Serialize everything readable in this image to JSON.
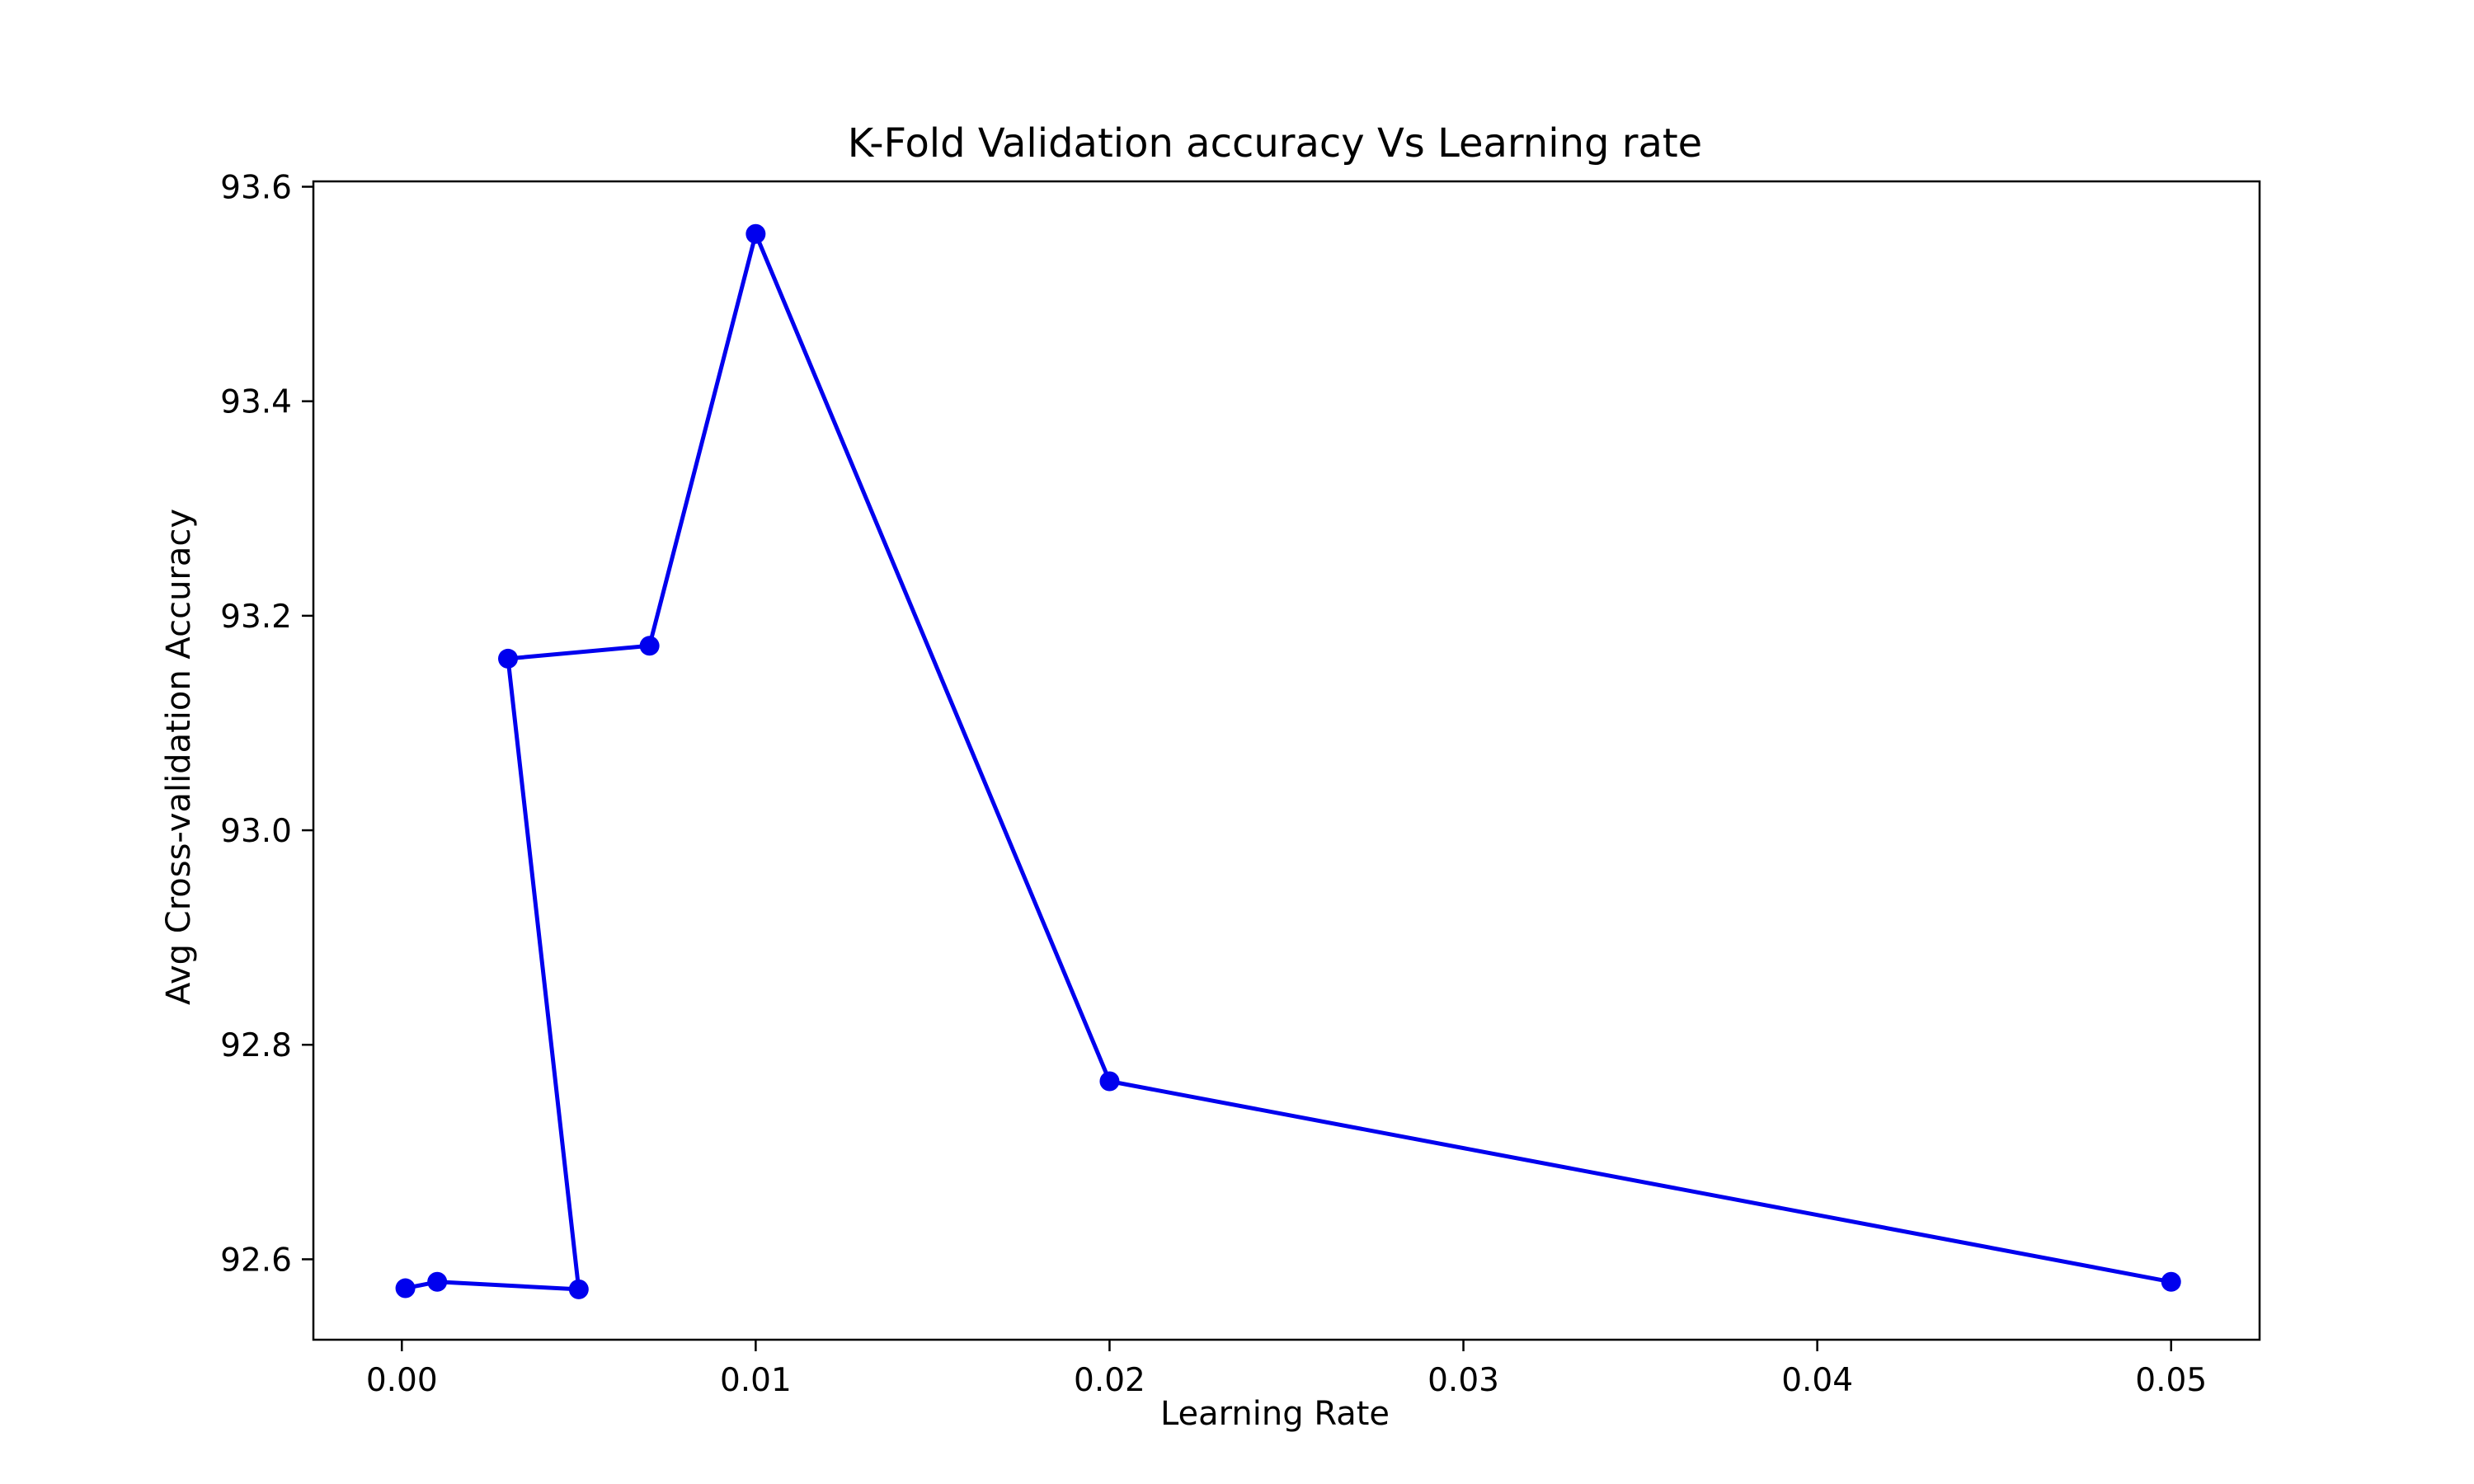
{
  "chart_data": {
    "type": "line",
    "title": "K-Fold Validation accuracy Vs Learning rate",
    "xlabel": "Learning Rate",
    "ylabel": "Avg Cross-validation Accuracy",
    "xlim": [
      -0.0025,
      0.0525
    ],
    "ylim": [
      92.525,
      93.605
    ],
    "xticks": [
      0.0,
      0.01,
      0.02,
      0.03,
      0.04,
      0.05
    ],
    "xtick_labels": [
      "0.00",
      "0.01",
      "0.02",
      "0.03",
      "0.04",
      "0.05"
    ],
    "yticks": [
      92.6,
      92.8,
      93.0,
      93.2,
      93.4,
      93.6
    ],
    "ytick_labels": [
      "92.6",
      "92.8",
      "93.0",
      "93.2",
      "93.4",
      "93.6"
    ],
    "grid": false,
    "series": [
      {
        "color": "#0000ee",
        "marker": "circle",
        "points": [
          {
            "x": 0.0001,
            "y": 92.573
          },
          {
            "x": 0.001,
            "y": 92.579
          },
          {
            "x": 0.003,
            "y": 93.16
          },
          {
            "x": 0.007,
            "y": 93.172
          },
          {
            "x": 0.01,
            "y": 93.556
          },
          {
            "x": 0.005,
            "y": 92.572
          },
          {
            "x": 0.02,
            "y": 92.766
          },
          {
            "x": 0.05,
            "y": 92.579
          }
        ],
        "line_order": [
          0,
          1,
          5,
          2,
          3,
          4,
          6,
          7
        ]
      }
    ]
  }
}
